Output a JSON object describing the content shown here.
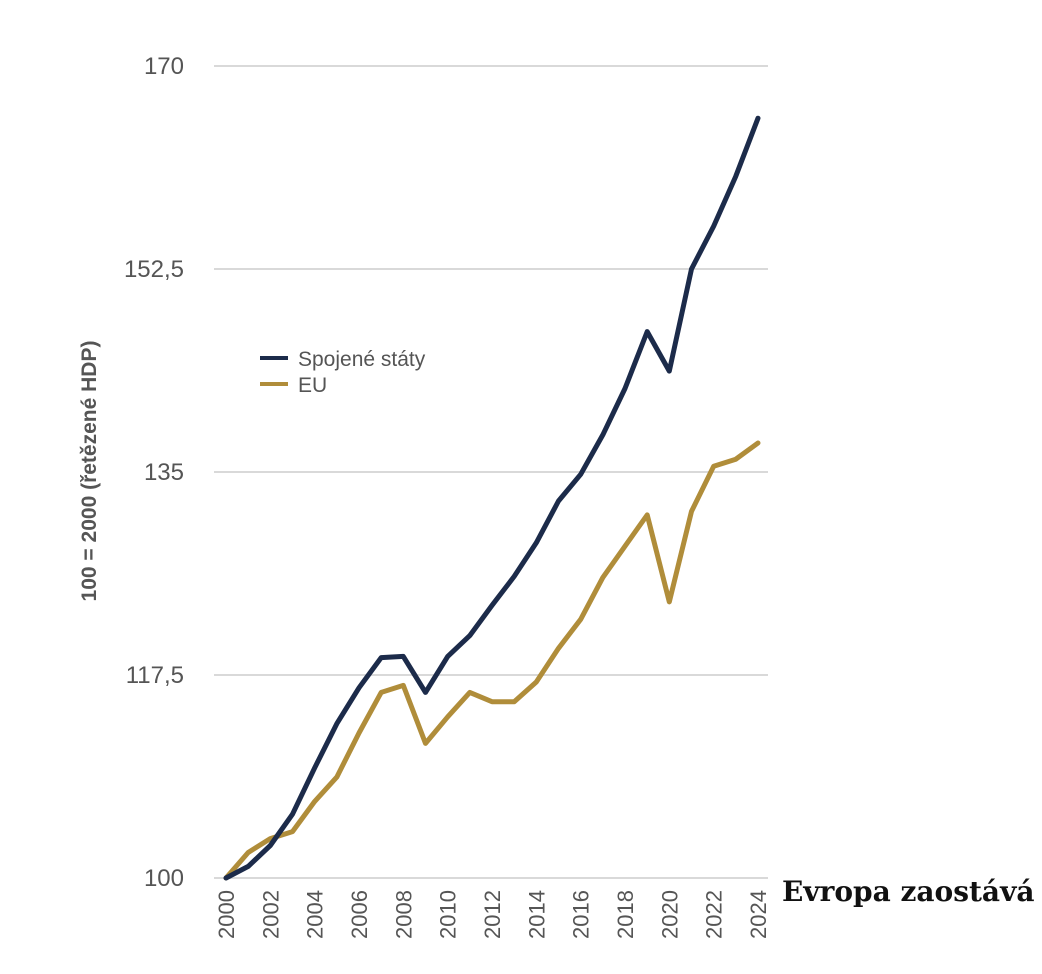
{
  "chart_data": {
    "type": "line",
    "title": "",
    "caption": "Evropa zaostává",
    "xlabel": "",
    "ylabel": "100 = 2000 (řetězené HDP)",
    "x": [
      2000,
      2001,
      2002,
      2003,
      2004,
      2005,
      2006,
      2007,
      2008,
      2009,
      2010,
      2011,
      2012,
      2013,
      2014,
      2015,
      2016,
      2017,
      2018,
      2019,
      2020,
      2021,
      2022,
      2023,
      2024
    ],
    "x_tick_labels": [
      "2000",
      "2002",
      "2004",
      "2006",
      "2008",
      "2010",
      "2012",
      "2014",
      "2016",
      "2018",
      "2020",
      "2022",
      "2024"
    ],
    "x_ticks": [
      2000,
      2002,
      2004,
      2006,
      2008,
      2010,
      2012,
      2014,
      2016,
      2018,
      2020,
      2022,
      2024
    ],
    "ylim": [
      100,
      170
    ],
    "y_ticks": [
      100,
      117.5,
      135,
      152.5,
      170
    ],
    "y_tick_labels": [
      "100",
      "117,5",
      "135",
      "152,5",
      "170"
    ],
    "grid": true,
    "legend_position": "center-left",
    "series": [
      {
        "name": "Spojené státy",
        "color": "#1c2b4a",
        "values": [
          100,
          101,
          102.8,
          105.5,
          109.5,
          113.3,
          116.4,
          119,
          119.1,
          116,
          119.1,
          120.9,
          123.5,
          126,
          128.9,
          132.5,
          134.8,
          138.2,
          142.2,
          147.1,
          143.7,
          152.5,
          156.2,
          160.5,
          165.5
        ]
      },
      {
        "name": "EU",
        "color": "#b08d3a",
        "values": [
          100,
          102.2,
          103.4,
          104,
          106.6,
          108.7,
          112.5,
          116,
          116.6,
          111.6,
          113.9,
          116,
          115.2,
          115.2,
          116.9,
          119.8,
          122.3,
          125.9,
          128.6,
          131.3,
          123.8,
          131.6,
          135.5,
          136.1,
          137.5
        ]
      }
    ]
  }
}
